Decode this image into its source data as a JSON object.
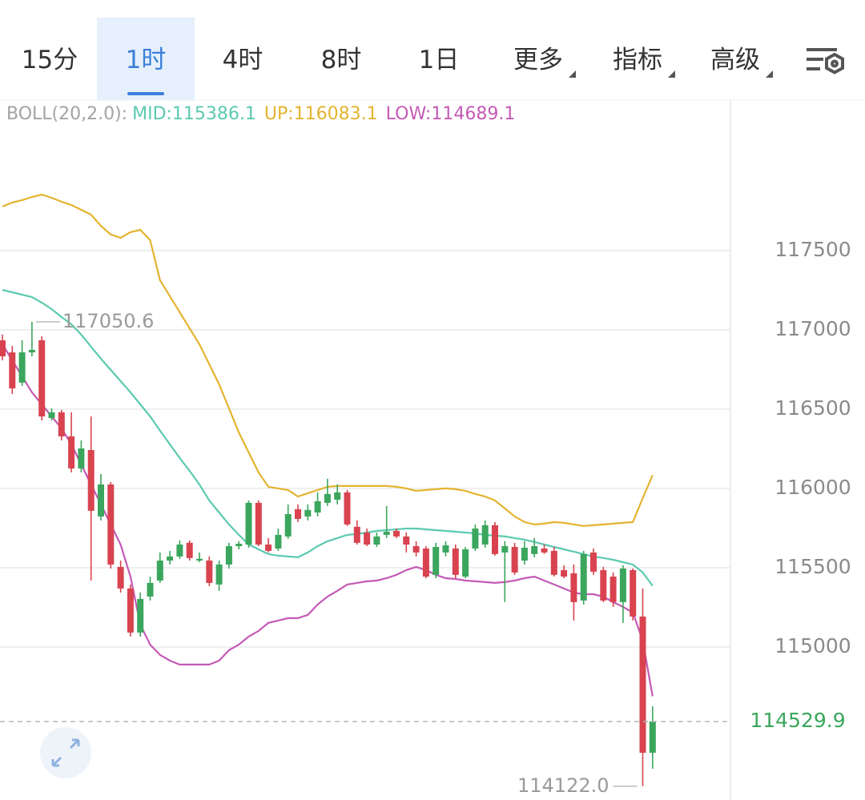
{
  "toolbar": {
    "tabs": [
      "15分",
      "1时",
      "4时",
      "8时",
      "1日",
      "更多",
      "指标",
      "高级"
    ],
    "menu": [
      false,
      false,
      false,
      false,
      false,
      true,
      true,
      true
    ],
    "selected_index": 1
  },
  "chart_data": {
    "type": "candlestick",
    "indicator": "BOLL(20,2.0):",
    "up_color": "#3ba65d",
    "down_color": "#d8434f",
    "open": [
      116934,
      116858,
      116667,
      116858,
      116934,
      116444,
      116480,
      116328,
      116126,
      116242,
      115823,
      116025,
      115505,
      115369,
      115091,
      115318,
      115419,
      115545,
      115571,
      115657,
      115545,
      115545,
      115394,
      115520,
      115636,
      115646,
      115909,
      115646,
      115621,
      115697,
      115869,
      115823,
      115848,
      115909,
      115929,
      115975,
      115758,
      115722,
      115646,
      115707,
      115732,
      115697,
      115636,
      115621,
      115455,
      115596,
      115621,
      115444,
      115621,
      115646,
      115768,
      115596,
      115631,
      115545,
      115586,
      115621,
      115606,
      115485,
      115465,
      115293,
      115596,
      115485,
      115444,
      115283,
      115485,
      115192,
      114333
    ],
    "high": [
      116970,
      116899,
      116934,
      117050.6,
      116959,
      116505,
      116495,
      116480,
      116303,
      116454,
      116091,
      116040,
      115545,
      115394,
      115343,
      115444,
      115596,
      115606,
      115672,
      115672,
      115596,
      115571,
      115545,
      115657,
      115667,
      115924,
      115924,
      115687,
      115747,
      115899,
      115899,
      115899,
      115975,
      116061,
      116025,
      115990,
      115798,
      115747,
      115722,
      115889,
      115747,
      115722,
      115667,
      115636,
      115657,
      115667,
      115646,
      115631,
      115773,
      115798,
      115788,
      115667,
      115657,
      115667,
      115687,
      115646,
      115631,
      115515,
      115520,
      115606,
      115621,
      115505,
      115470,
      115515,
      115495,
      115369,
      114626
    ],
    "low": [
      116808,
      116596,
      116646,
      116833,
      116429,
      116429,
      116303,
      116101,
      116101,
      115419,
      115798,
      115495,
      115343,
      115066,
      115066,
      115293,
      115404,
      115520,
      115556,
      115545,
      115535,
      115384,
      115354,
      115495,
      115616,
      115626,
      115636,
      115596,
      115606,
      115682,
      115788,
      115798,
      115823,
      115889,
      115899,
      115763,
      115646,
      115636,
      115631,
      115687,
      115687,
      115596,
      115571,
      115434,
      115434,
      115571,
      115434,
      115434,
      115606,
      115626,
      115576,
      115283,
      115455,
      115520,
      115566,
      115586,
      115444,
      115434,
      115167,
      115268,
      115455,
      115283,
      115253,
      115152,
      115167,
      114122.0,
      114232
    ],
    "close": [
      116833,
      116631,
      116858,
      116874,
      116454,
      116480,
      116328,
      116126,
      116252,
      115859,
      116025,
      115520,
      115369,
      115091,
      115303,
      115404,
      115545,
      115571,
      115646,
      115561,
      115556,
      115404,
      115520,
      115636,
      115651,
      115909,
      115646,
      115606,
      115707,
      115838,
      115808,
      115864,
      115919,
      115965,
      115975,
      115773,
      115657,
      115646,
      115697,
      115727,
      115697,
      115646,
      115596,
      115444,
      115631,
      115641,
      115455,
      115616,
      115747,
      115768,
      115586,
      115636,
      115470,
      115626,
      115636,
      115596,
      115455,
      115444,
      115283,
      115586,
      115475,
      115293,
      115283,
      115495,
      115192,
      114333,
      114529.9
    ],
    "series": [
      {
        "name": "MID:",
        "color": "#5ccab0",
        "values": [
          117252,
          117237,
          117222,
          117207,
          117172,
          117131,
          117081,
          117035,
          116970,
          116894,
          116818,
          116747,
          116677,
          116606,
          116530,
          116454,
          116364,
          116278,
          116192,
          116111,
          116025,
          115924,
          115848,
          115773,
          115707,
          115646,
          115616,
          115586,
          115576,
          115571,
          115566,
          115596,
          115636,
          115667,
          115687,
          115707,
          115712,
          115722,
          115732,
          115737,
          115742,
          115747,
          115747,
          115742,
          115737,
          115732,
          115727,
          115722,
          115717,
          115707,
          115702,
          115697,
          115687,
          115677,
          115662,
          115646,
          115631,
          115616,
          115601,
          115586,
          115571,
          115561,
          115550,
          115535,
          115520,
          115470,
          115386.1
        ]
      },
      {
        "name": "UP:",
        "color": "#e3b430",
        "values": [
          117778,
          117803,
          117818,
          117838,
          117853,
          117833,
          117808,
          117788,
          117757,
          117727,
          117656,
          117601,
          117581,
          117616,
          117631,
          117565,
          117313,
          117212,
          117111,
          117010,
          116909,
          116783,
          116656,
          116505,
          116353,
          116227,
          116101,
          116010,
          116000,
          115990,
          115949,
          115970,
          115990,
          116010,
          116015,
          116015,
          116015,
          116015,
          116015,
          116015,
          116010,
          116000,
          115985,
          115990,
          115995,
          116000,
          115995,
          115985,
          115965,
          115949,
          115924,
          115874,
          115823,
          115788,
          115773,
          115778,
          115788,
          115783,
          115773,
          115763,
          115768,
          115773,
          115778,
          115783,
          115788,
          115939,
          116083.1
        ]
      },
      {
        "name": "LOW:",
        "color": "#c45ab6",
        "values": [
          116909,
          116808,
          116707,
          116606,
          116530,
          116454,
          116379,
          116278,
          116151,
          116025,
          115899,
          115773,
          115646,
          115444,
          115141,
          115015,
          114950,
          114914,
          114889,
          114889,
          114889,
          114889,
          114914,
          114980,
          115015,
          115066,
          115101,
          115152,
          115167,
          115182,
          115182,
          115202,
          115268,
          115318,
          115354,
          115394,
          115404,
          115414,
          115419,
          115434,
          115455,
          115485,
          115505,
          115485,
          115455,
          115434,
          115429,
          115419,
          115414,
          115409,
          115404,
          115409,
          115419,
          115434,
          115444,
          115419,
          115394,
          115369,
          115343,
          115333,
          115333,
          115318,
          115283,
          115253,
          115217,
          115040,
          114689.1
        ]
      }
    ],
    "ylim": [
      114035,
      118449
    ],
    "yticks": [
      115000,
      115500,
      116000,
      116500,
      117000,
      117500
    ],
    "grid": true,
    "high_label": "117050.6",
    "low_label": "114122.0"
  }
}
